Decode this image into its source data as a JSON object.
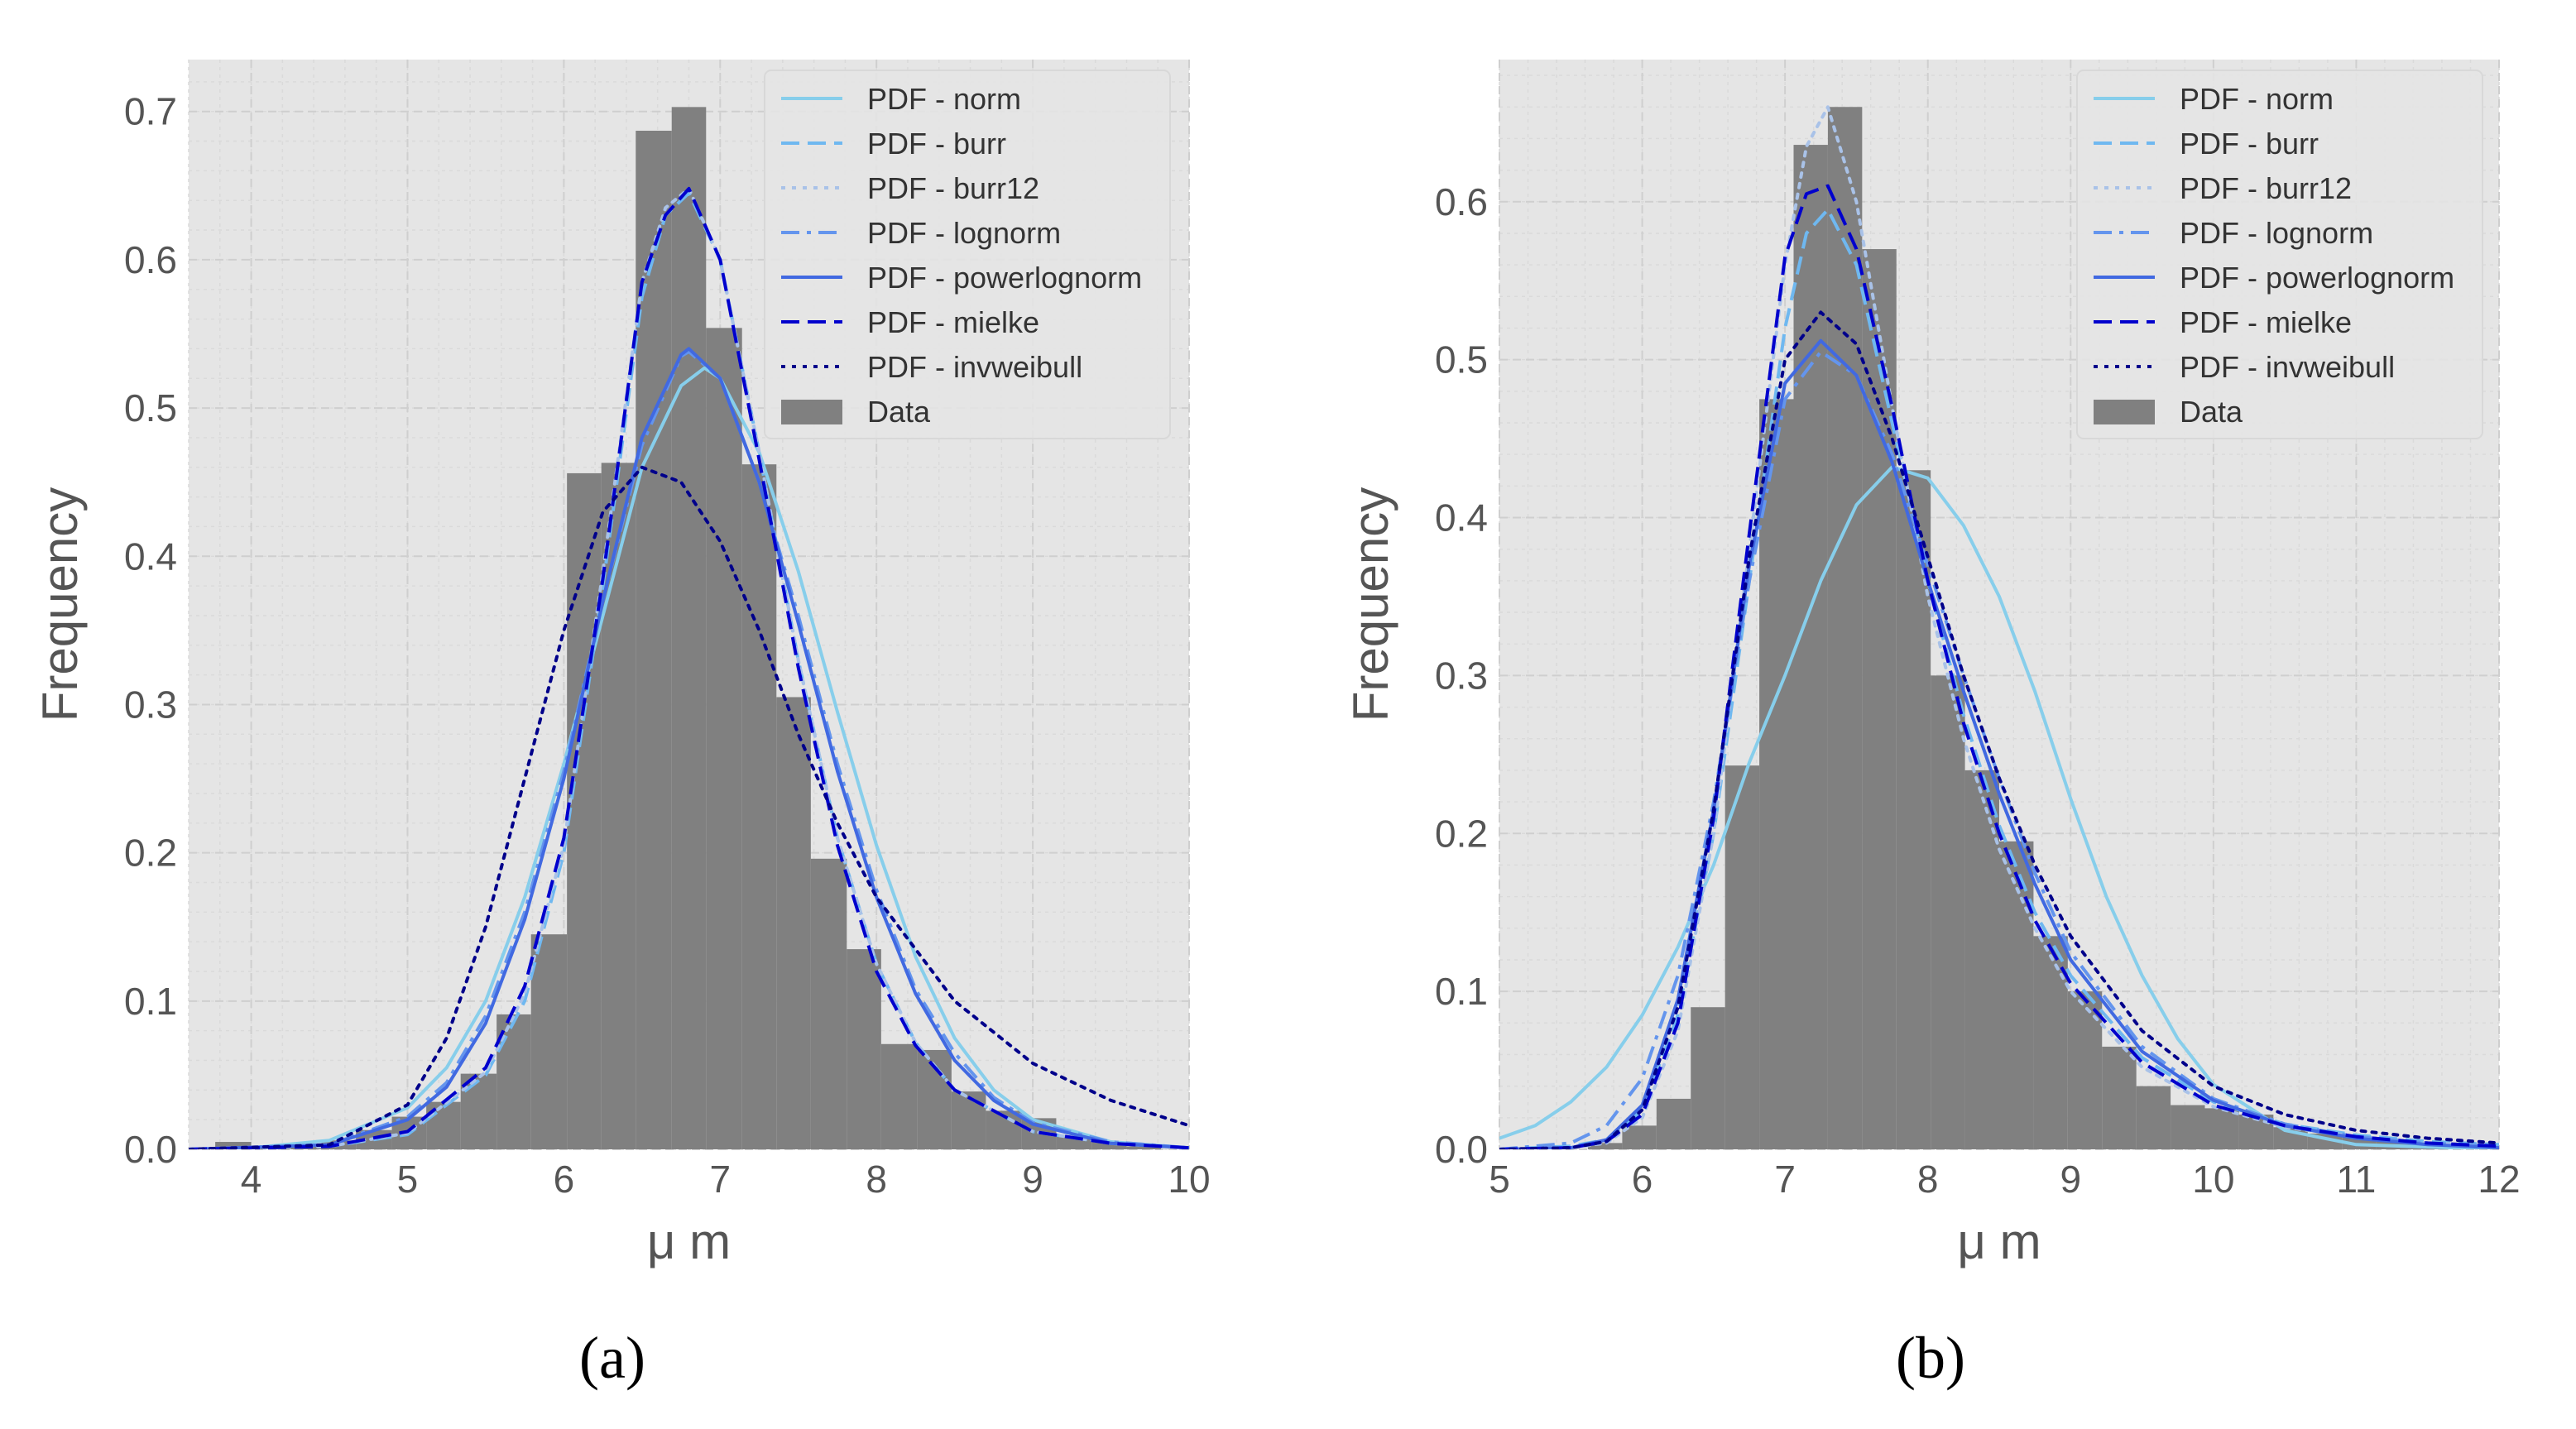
{
  "panel_labels": [
    "(a)",
    "(b)"
  ],
  "colors": {
    "plot_bg": "#e5e5e5",
    "grid": "#cfcfcf",
    "minor_grid": "#dadada",
    "hist": "#808080",
    "text": "#555555",
    "norm": "#87ceeb",
    "burr": "#6fb8f0",
    "burr12": "#a9c2e8",
    "lognorm": "#6495ed",
    "powerlognorm": "#4169e1",
    "mielke": "#0000cd",
    "invweibull": "#00008b"
  },
  "chart_data": [
    {
      "type": "histogram_with_pdf",
      "label": "(a)",
      "xlabel": "μ m",
      "ylabel": "Frequency",
      "xlim": [
        3.6,
        10.0
      ],
      "ylim": [
        0.0,
        0.735
      ],
      "xticks": [
        4,
        5,
        6,
        7,
        8,
        9,
        10
      ],
      "xtick_labels": [
        "4",
        "5",
        "6",
        "7",
        "8",
        "9",
        "10"
      ],
      "yticks": [
        0.0,
        0.1,
        0.2,
        0.3,
        0.4,
        0.5,
        0.6,
        0.7
      ],
      "ytick_labels": [
        "0.0",
        "0.1",
        "0.2",
        "0.3",
        "0.4",
        "0.5",
        "0.6",
        "0.7"
      ],
      "grid": true,
      "legend_position": "top-right",
      "legend": [
        "PDF - norm",
        "PDF - burr",
        "PDF - burr12",
        "PDF - lognorm",
        "PDF - powerlognorm",
        "PDF - mielke",
        "PDF - invweibull",
        "Data"
      ],
      "histogram": {
        "name": "Data",
        "bin_edges": [
          3.77,
          4.0,
          4.22,
          4.45,
          4.67,
          4.9,
          5.12,
          5.34,
          5.57,
          5.79,
          6.02,
          6.24,
          6.46,
          6.69,
          6.91,
          7.14,
          7.36,
          7.58,
          7.81,
          8.03,
          8.26,
          8.48,
          8.7,
          8.93,
          9.15,
          9.38,
          9.6,
          9.82
        ],
        "heights": [
          0.005,
          0.002,
          0.003,
          0.006,
          0.013,
          0.022,
          0.032,
          0.051,
          0.091,
          0.145,
          0.456,
          0.463,
          0.687,
          0.703,
          0.554,
          0.462,
          0.305,
          0.196,
          0.135,
          0.071,
          0.067,
          0.039,
          0.026,
          0.021,
          0.009,
          0.005,
          0.002
        ]
      },
      "series": [
        {
          "name": "PDF - norm",
          "style": "solid",
          "x": [
            3.6,
            4.0,
            4.5,
            5.0,
            5.25,
            5.5,
            5.75,
            6.0,
            6.25,
            6.5,
            6.75,
            6.9,
            7.0,
            7.25,
            7.5,
            7.75,
            8.0,
            8.25,
            8.5,
            8.75,
            9.0,
            9.5,
            10.0
          ],
          "y": [
            0.0,
            0.001,
            0.006,
            0.028,
            0.055,
            0.1,
            0.17,
            0.26,
            0.36,
            0.46,
            0.515,
            0.527,
            0.52,
            0.47,
            0.39,
            0.295,
            0.205,
            0.13,
            0.075,
            0.04,
            0.02,
            0.005,
            0.001
          ]
        },
        {
          "name": "PDF - burr",
          "style": "dashed",
          "x": [
            3.6,
            4.5,
            5.0,
            5.5,
            5.75,
            6.0,
            6.25,
            6.5,
            6.65,
            6.8,
            7.0,
            7.25,
            7.5,
            7.75,
            8.0,
            8.25,
            8.5,
            9.0,
            9.5,
            10.0
          ],
          "y": [
            0.0,
            0.002,
            0.01,
            0.05,
            0.1,
            0.2,
            0.38,
            0.575,
            0.63,
            0.645,
            0.6,
            0.47,
            0.33,
            0.21,
            0.125,
            0.072,
            0.04,
            0.012,
            0.004,
            0.001
          ]
        },
        {
          "name": "PDF - burr12",
          "style": "dotted",
          "x": [
            3.6,
            4.5,
            5.0,
            5.5,
            5.75,
            6.0,
            6.25,
            6.5,
            6.65,
            6.8,
            7.0,
            7.25,
            7.5,
            7.75,
            8.0,
            8.25,
            8.5,
            9.0,
            9.5,
            10.0
          ],
          "y": [
            0.0,
            0.002,
            0.011,
            0.052,
            0.105,
            0.205,
            0.39,
            0.585,
            0.635,
            0.648,
            0.6,
            0.47,
            0.33,
            0.21,
            0.125,
            0.072,
            0.04,
            0.012,
            0.004,
            0.001
          ]
        },
        {
          "name": "PDF - lognorm",
          "style": "dashdot",
          "x": [
            3.6,
            4.5,
            5.0,
            5.25,
            5.5,
            5.75,
            6.0,
            6.25,
            6.5,
            6.75,
            6.8,
            7.0,
            7.25,
            7.5,
            7.75,
            8.0,
            8.25,
            8.5,
            8.75,
            9.0,
            9.5,
            10.0
          ],
          "y": [
            0.0,
            0.003,
            0.022,
            0.045,
            0.09,
            0.16,
            0.255,
            0.37,
            0.475,
            0.535,
            0.538,
            0.52,
            0.45,
            0.36,
            0.26,
            0.175,
            0.108,
            0.065,
            0.035,
            0.018,
            0.005,
            0.001
          ]
        },
        {
          "name": "PDF - powerlognorm",
          "style": "solid",
          "x": [
            3.6,
            4.5,
            5.0,
            5.25,
            5.5,
            5.75,
            6.0,
            6.25,
            6.5,
            6.75,
            6.8,
            7.0,
            7.25,
            7.5,
            7.75,
            8.0,
            8.25,
            8.5,
            8.75,
            9.0,
            9.5,
            10.0
          ],
          "y": [
            0.0,
            0.003,
            0.02,
            0.042,
            0.085,
            0.155,
            0.25,
            0.37,
            0.48,
            0.536,
            0.54,
            0.52,
            0.45,
            0.355,
            0.255,
            0.17,
            0.105,
            0.06,
            0.033,
            0.017,
            0.004,
            0.001
          ]
        },
        {
          "name": "PDF - mielke",
          "style": "dashed",
          "x": [
            3.6,
            4.5,
            5.0,
            5.5,
            5.75,
            6.0,
            6.25,
            6.5,
            6.65,
            6.8,
            7.0,
            7.25,
            7.5,
            7.75,
            8.0,
            8.25,
            8.5,
            9.0,
            9.5,
            10.0
          ],
          "y": [
            0.0,
            0.002,
            0.012,
            0.055,
            0.11,
            0.21,
            0.385,
            0.585,
            0.63,
            0.648,
            0.6,
            0.465,
            0.325,
            0.205,
            0.12,
            0.07,
            0.04,
            0.012,
            0.004,
            0.001
          ]
        },
        {
          "name": "PDF - invweibull",
          "style": "dotted",
          "x": [
            3.6,
            4.5,
            5.0,
            5.25,
            5.5,
            5.75,
            6.0,
            6.25,
            6.5,
            6.75,
            7.0,
            7.25,
            7.5,
            7.75,
            8.0,
            8.5,
            9.0,
            9.5,
            10.0
          ],
          "y": [
            0.0,
            0.003,
            0.03,
            0.075,
            0.15,
            0.25,
            0.35,
            0.43,
            0.46,
            0.45,
            0.41,
            0.35,
            0.28,
            0.22,
            0.17,
            0.1,
            0.058,
            0.033,
            0.016
          ]
        }
      ]
    },
    {
      "type": "histogram_with_pdf",
      "label": "(b)",
      "xlabel": "μ m",
      "ylabel": "Frequency",
      "xlim": [
        5.0,
        12.0
      ],
      "ylim": [
        0.0,
        0.69
      ],
      "xticks": [
        5,
        6,
        7,
        8,
        9,
        10,
        11,
        12
      ],
      "xtick_labels": [
        "5",
        "6",
        "7",
        "8",
        "9",
        "10",
        "11",
        "12"
      ],
      "yticks": [
        0.0,
        0.1,
        0.2,
        0.3,
        0.4,
        0.5,
        0.6
      ],
      "ytick_labels": [
        "0.0",
        "0.1",
        "0.2",
        "0.3",
        "0.4",
        "0.5",
        "0.6"
      ],
      "grid": true,
      "legend_position": "top-right",
      "legend": [
        "PDF - norm",
        "PDF - burr",
        "PDF - burr12",
        "PDF - lognorm",
        "PDF - powerlognorm",
        "PDF - mielke",
        "PDF - invweibull",
        "Data"
      ],
      "histogram": {
        "name": "Data",
        "bin_edges": [
          5.62,
          5.86,
          6.1,
          6.34,
          6.58,
          6.82,
          7.06,
          7.3,
          7.54,
          7.78,
          8.02,
          8.26,
          8.5,
          8.74,
          8.98,
          9.22,
          9.46,
          9.7,
          9.94,
          10.18,
          10.42,
          10.66,
          10.9,
          11.14,
          11.38,
          11.62,
          11.86,
          12.0
        ],
        "heights": [
          0.004,
          0.015,
          0.032,
          0.09,
          0.243,
          0.475,
          0.636,
          0.66,
          0.57,
          0.43,
          0.3,
          0.24,
          0.195,
          0.135,
          0.1,
          0.065,
          0.04,
          0.028,
          0.026,
          0.022,
          0.014,
          0.01,
          0.008,
          0.006,
          0.004,
          0.003,
          0.001
        ]
      },
      "series": [
        {
          "name": "PDF - norm",
          "style": "solid",
          "x": [
            5.0,
            5.25,
            5.5,
            5.75,
            6.0,
            6.25,
            6.5,
            6.75,
            7.0,
            7.25,
            7.5,
            7.75,
            8.0,
            8.25,
            8.5,
            8.75,
            9.0,
            9.25,
            9.5,
            9.75,
            10.0,
            10.5,
            11.0,
            12.0
          ],
          "y": [
            0.007,
            0.015,
            0.03,
            0.052,
            0.085,
            0.128,
            0.18,
            0.245,
            0.3,
            0.36,
            0.408,
            0.432,
            0.425,
            0.395,
            0.35,
            0.29,
            0.222,
            0.16,
            0.11,
            0.07,
            0.041,
            0.012,
            0.003,
            0.0
          ]
        },
        {
          "name": "PDF - burr",
          "style": "dashed",
          "x": [
            5.0,
            5.5,
            5.75,
            6.0,
            6.25,
            6.5,
            6.75,
            7.0,
            7.15,
            7.3,
            7.5,
            7.75,
            8.0,
            8.25,
            8.5,
            8.75,
            9.0,
            9.5,
            10.0,
            10.5,
            11.0,
            11.5,
            12.0
          ],
          "y": [
            0.0,
            0.002,
            0.006,
            0.025,
            0.085,
            0.2,
            0.36,
            0.52,
            0.58,
            0.595,
            0.56,
            0.46,
            0.36,
            0.275,
            0.205,
            0.15,
            0.11,
            0.058,
            0.03,
            0.016,
            0.009,
            0.005,
            0.003
          ]
        },
        {
          "name": "PDF - burr12",
          "style": "dotted",
          "x": [
            5.0,
            5.5,
            5.75,
            6.0,
            6.25,
            6.5,
            6.75,
            7.0,
            7.15,
            7.3,
            7.5,
            7.75,
            8.0,
            8.25,
            8.5,
            8.75,
            9.0,
            9.5,
            10.0,
            10.5,
            11.0,
            11.5,
            12.0
          ],
          "y": [
            0.0,
            0.001,
            0.004,
            0.02,
            0.075,
            0.2,
            0.38,
            0.56,
            0.635,
            0.66,
            0.6,
            0.47,
            0.35,
            0.26,
            0.19,
            0.14,
            0.1,
            0.052,
            0.027,
            0.014,
            0.008,
            0.004,
            0.002
          ]
        },
        {
          "name": "PDF - lognorm",
          "style": "dashdot",
          "x": [
            5.0,
            5.5,
            5.75,
            6.0,
            6.25,
            6.5,
            6.75,
            7.0,
            7.25,
            7.5,
            7.75,
            8.0,
            8.25,
            8.5,
            8.75,
            9.0,
            9.5,
            10.0,
            10.5,
            11.0,
            11.5,
            12.0
          ],
          "y": [
            0.0,
            0.004,
            0.015,
            0.045,
            0.11,
            0.22,
            0.36,
            0.475,
            0.505,
            0.49,
            0.44,
            0.37,
            0.3,
            0.235,
            0.175,
            0.125,
            0.065,
            0.032,
            0.016,
            0.008,
            0.004,
            0.002
          ]
        },
        {
          "name": "PDF - powerlognorm",
          "style": "solid",
          "x": [
            5.0,
            5.5,
            5.75,
            6.0,
            6.25,
            6.5,
            6.75,
            7.0,
            7.25,
            7.5,
            7.75,
            8.0,
            8.25,
            8.5,
            8.75,
            9.0,
            9.5,
            10.0,
            10.5,
            11.0,
            11.5,
            12.0
          ],
          "y": [
            0.0,
            0.001,
            0.006,
            0.028,
            0.095,
            0.215,
            0.37,
            0.485,
            0.512,
            0.49,
            0.435,
            0.36,
            0.29,
            0.225,
            0.168,
            0.12,
            0.062,
            0.031,
            0.015,
            0.007,
            0.003,
            0.001
          ]
        },
        {
          "name": "PDF - mielke",
          "style": "dashed",
          "x": [
            5.0,
            5.5,
            5.75,
            6.0,
            6.25,
            6.5,
            6.75,
            7.0,
            7.15,
            7.3,
            7.5,
            7.75,
            8.0,
            8.25,
            8.5,
            8.75,
            9.0,
            9.5,
            10.0,
            10.5,
            11.0,
            11.5,
            12.0
          ],
          "y": [
            0.0,
            0.001,
            0.005,
            0.022,
            0.08,
            0.21,
            0.39,
            0.565,
            0.605,
            0.61,
            0.57,
            0.47,
            0.36,
            0.27,
            0.2,
            0.145,
            0.105,
            0.055,
            0.028,
            0.015,
            0.008,
            0.004,
            0.002
          ]
        },
        {
          "name": "PDF - invweibull",
          "style": "dotted",
          "x": [
            5.0,
            5.5,
            5.75,
            6.0,
            6.25,
            6.5,
            6.75,
            7.0,
            7.25,
            7.5,
            7.75,
            8.0,
            8.25,
            8.5,
            8.75,
            9.0,
            9.5,
            10.0,
            10.5,
            11.0,
            11.5,
            12.0
          ],
          "y": [
            0.0,
            0.001,
            0.005,
            0.025,
            0.09,
            0.215,
            0.375,
            0.5,
            0.53,
            0.51,
            0.45,
            0.375,
            0.3,
            0.235,
            0.18,
            0.135,
            0.075,
            0.04,
            0.022,
            0.012,
            0.007,
            0.004
          ]
        }
      ]
    }
  ]
}
